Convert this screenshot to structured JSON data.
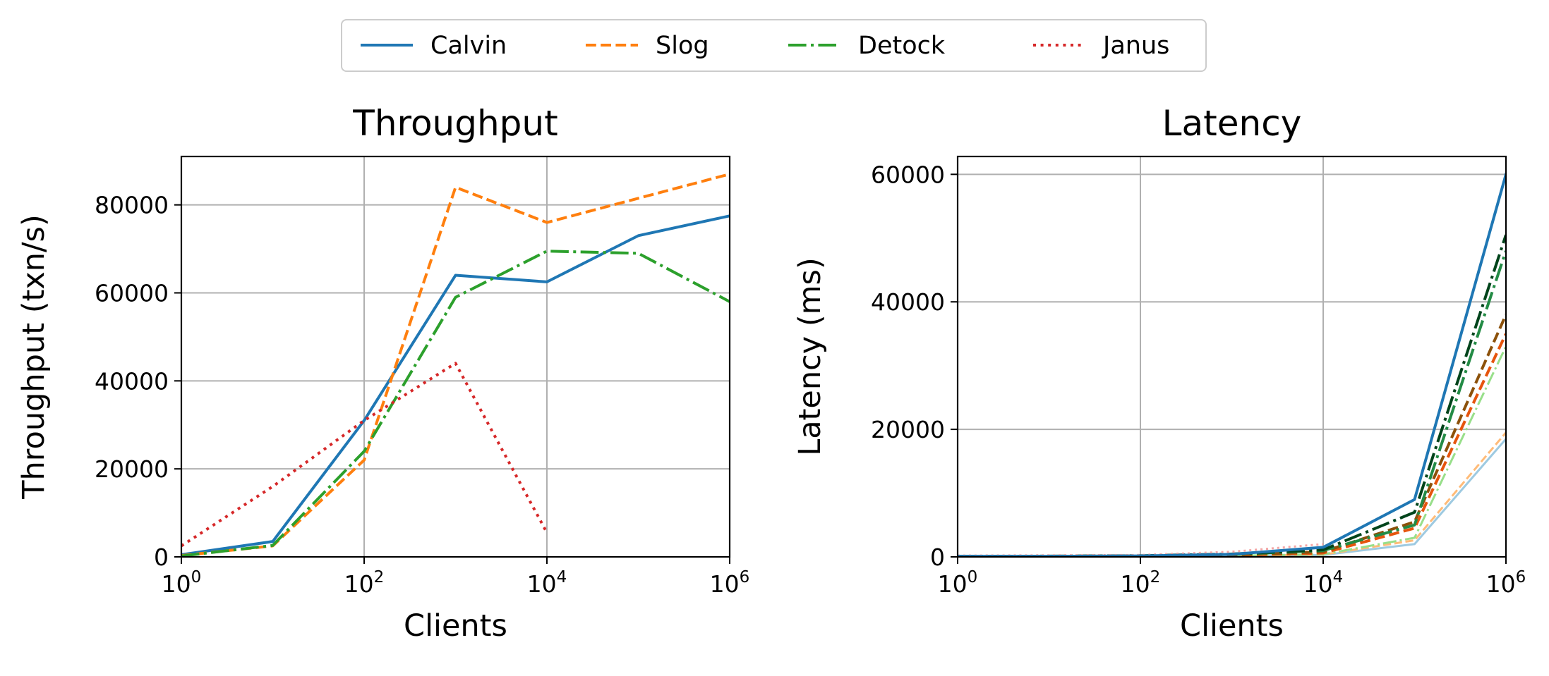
{
  "legend": {
    "placement": "top-center",
    "entries": [
      {
        "label": "Calvin",
        "color": "#1f77b4",
        "dash": "solid"
      },
      {
        "label": "Slog",
        "color": "#ff7f0e",
        "dash": "dashed"
      },
      {
        "label": "Detock",
        "color": "#2ca02c",
        "dash": "dashdot"
      },
      {
        "label": "Janus",
        "color": "#d62728",
        "dash": "dotted"
      }
    ]
  },
  "chart_data": [
    {
      "type": "line",
      "title": "Throughput",
      "xlabel": "Clients",
      "ylabel": "Throughput (txn/s)",
      "xscale": "log",
      "xlim": [
        1,
        1000000
      ],
      "ylim": [
        0,
        91000
      ],
      "xticks": [
        {
          "base": "10",
          "exp": "0",
          "value": 1
        },
        {
          "base": "10",
          "exp": "2",
          "value": 100
        },
        {
          "base": "10",
          "exp": "4",
          "value": 10000
        },
        {
          "base": "10",
          "exp": "6",
          "value": 1000000
        }
      ],
      "yticks": [
        {
          "label": "0",
          "value": 0
        },
        {
          "label": "20000",
          "value": 20000
        },
        {
          "label": "40000",
          "value": 40000
        },
        {
          "label": "60000",
          "value": 60000
        },
        {
          "label": "80000",
          "value": 80000
        }
      ],
      "grid": true,
      "series": [
        {
          "name": "Calvin",
          "color": "#1f77b4",
          "dash": "solid",
          "width": 4,
          "x": [
            1,
            10,
            100,
            1000,
            10000,
            100000,
            1000000
          ],
          "y": [
            500,
            3500,
            31000,
            64000,
            62500,
            73000,
            77500
          ]
        },
        {
          "name": "Slog",
          "color": "#ff7f0e",
          "dash": "dashed",
          "width": 4,
          "x": [
            1,
            10,
            100,
            1000,
            10000,
            100000,
            1000000
          ],
          "y": [
            300,
            2500,
            22000,
            84000,
            76000,
            81500,
            87000
          ]
        },
        {
          "name": "Detock",
          "color": "#2ca02c",
          "dash": "dashdot",
          "width": 4,
          "x": [
            1,
            10,
            100,
            1000,
            10000,
            100000,
            1000000
          ],
          "y": [
            200,
            2600,
            24000,
            59000,
            69500,
            69000,
            58000
          ]
        },
        {
          "name": "Janus",
          "color": "#d62728",
          "dash": "dotted",
          "width": 4,
          "x": [
            1,
            10,
            100,
            1000,
            10000
          ],
          "y": [
            2500,
            16000,
            31000,
            44000,
            5500
          ]
        }
      ]
    },
    {
      "type": "line",
      "title": "Latency",
      "xlabel": "Clients",
      "ylabel": "Latency (ms)",
      "xscale": "log",
      "xlim": [
        1,
        1000000
      ],
      "ylim": [
        0,
        62800
      ],
      "xticks": [
        {
          "base": "10",
          "exp": "0",
          "value": 1
        },
        {
          "base": "10",
          "exp": "2",
          "value": 100
        },
        {
          "base": "10",
          "exp": "4",
          "value": 10000
        },
        {
          "base": "10",
          "exp": "6",
          "value": 1000000
        }
      ],
      "yticks": [
        {
          "label": "0",
          "value": 0
        },
        {
          "label": "20000",
          "value": 20000
        },
        {
          "label": "40000",
          "value": 40000
        },
        {
          "label": "60000",
          "value": 60000
        }
      ],
      "grid": true,
      "series": [
        {
          "color": "#9ecae1",
          "dash": "solid",
          "width": 3,
          "x": [
            1,
            10,
            100,
            1000,
            10000,
            100000,
            1000000
          ],
          "y": [
            40,
            60,
            90,
            150,
            300,
            2000,
            18500
          ]
        },
        {
          "color": "#ffbb78",
          "dash": "dashed",
          "width": 3,
          "x": [
            1,
            10,
            100,
            1000,
            10000,
            100000,
            1000000
          ],
          "y": [
            50,
            70,
            100,
            180,
            350,
            2600,
            19500
          ]
        },
        {
          "color": "#98df8a",
          "dash": "dashdot",
          "width": 3,
          "x": [
            1,
            10,
            100,
            1000,
            10000,
            100000,
            1000000
          ],
          "y": [
            45,
            65,
            95,
            170,
            400,
            3000,
            33000
          ]
        },
        {
          "color": "#e6550d",
          "dash": "dashed",
          "width": 4,
          "x": [
            1,
            10,
            100,
            1000,
            10000,
            100000,
            1000000
          ],
          "y": [
            70,
            90,
            130,
            250,
            600,
            4500,
            35000
          ]
        },
        {
          "color": "#8c510a",
          "dash": "dashed",
          "width": 4,
          "x": [
            1,
            10,
            100,
            1000,
            10000,
            100000,
            1000000
          ],
          "y": [
            80,
            100,
            150,
            300,
            800,
            5500,
            38000
          ]
        },
        {
          "color": "#238b45",
          "dash": "dashdot",
          "width": 4,
          "x": [
            1,
            10,
            100,
            1000,
            10000,
            100000,
            1000000
          ],
          "y": [
            90,
            110,
            160,
            400,
            1000,
            5000,
            48000
          ]
        },
        {
          "color": "#00441b",
          "dash": "dashdot",
          "width": 4,
          "x": [
            1,
            10,
            100,
            1000,
            10000,
            100000,
            1000000
          ],
          "y": [
            100,
            120,
            180,
            450,
            1100,
            7000,
            50500
          ]
        },
        {
          "color": "#f4a6a6",
          "dash": "dotted",
          "width": 3,
          "x": [
            1,
            10,
            100,
            1000,
            10000
          ],
          "y": [
            200,
            250,
            300,
            800,
            2000
          ]
        },
        {
          "color": "#1f77b4",
          "dash": "solid",
          "width": 4,
          "x": [
            1,
            10,
            100,
            1000,
            10000,
            100000,
            1000000
          ],
          "y": [
            100,
            100,
            150,
            400,
            1500,
            9000,
            60000
          ]
        }
      ]
    }
  ]
}
